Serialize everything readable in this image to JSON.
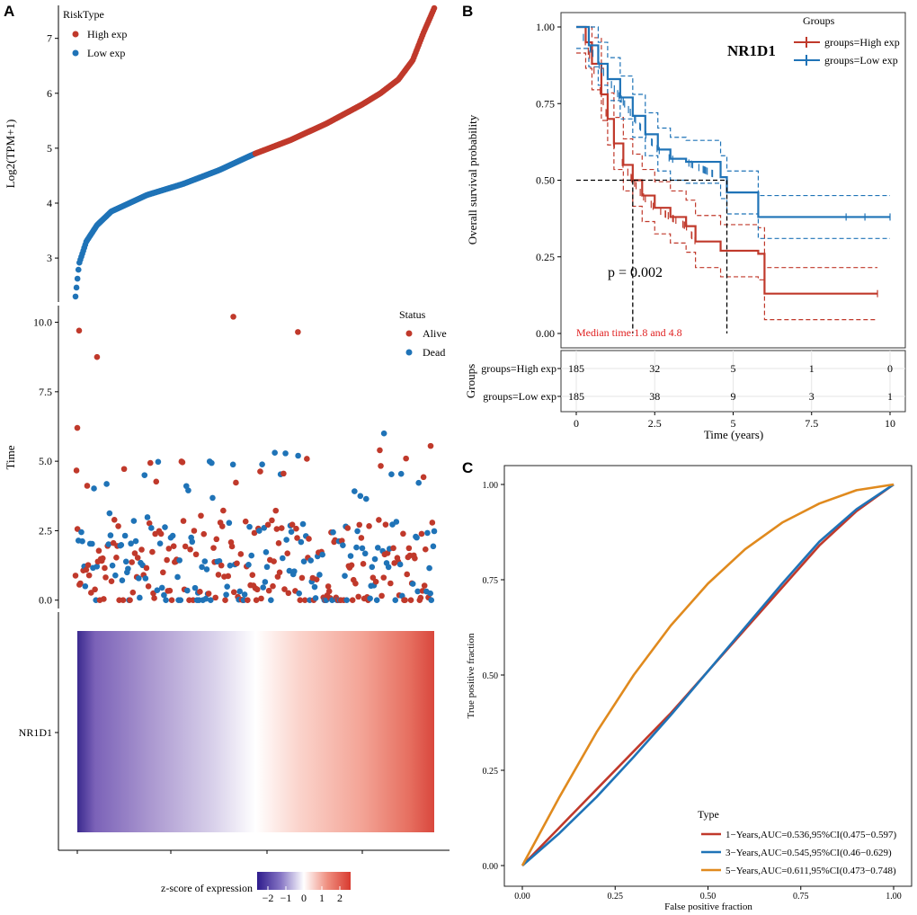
{
  "colors": {
    "high": "#c0392b",
    "low": "#1f73b7",
    "orange": "#e08a1e",
    "heat_low": "#3b2a8f",
    "heat_high": "#d9473d"
  },
  "panel_labels": {
    "a": "A",
    "b": "B",
    "c": "C"
  },
  "chart_data": [
    {
      "id": "risk_expression",
      "type": "scatter",
      "ylabel": "Log2(TPM+1)",
      "ylim": [
        2.2,
        7.6
      ],
      "y_ticks": [
        "3",
        "4",
        "5",
        "6",
        "7"
      ],
      "legend_title": "RiskType",
      "legend": [
        "High exp",
        "Low exp"
      ],
      "n_points": 370,
      "low_group_count": 185,
      "high_group_count": 185,
      "curve_profile": {
        "rank_fraction": [
          0,
          0.01,
          0.03,
          0.06,
          0.1,
          0.2,
          0.3,
          0.4,
          0.5,
          0.6,
          0.7,
          0.8,
          0.85,
          0.9,
          0.94,
          0.97,
          1.0
        ],
        "value": [
          2.3,
          2.9,
          3.3,
          3.6,
          3.85,
          4.15,
          4.35,
          4.6,
          4.9,
          5.15,
          5.45,
          5.8,
          6.0,
          6.25,
          6.6,
          7.1,
          7.55
        ]
      }
    },
    {
      "id": "survival_status",
      "type": "scatter",
      "ylabel": "Time",
      "ylim": [
        -0.3,
        10.6
      ],
      "y_ticks": [
        "0.0",
        "2.5",
        "5.0",
        "7.5",
        "10.0"
      ],
      "legend_title": "Status",
      "legend": [
        "Alive",
        "Dead"
      ],
      "n_points": 370,
      "notable_points": [
        {
          "rank_fraction": 0.005,
          "time": 6.2,
          "status": "Alive"
        },
        {
          "rank_fraction": 0.01,
          "time": 9.7,
          "status": "Alive"
        },
        {
          "rank_fraction": 0.06,
          "time": 8.75,
          "status": "Alive"
        },
        {
          "rank_fraction": 0.44,
          "time": 10.2,
          "status": "Alive"
        },
        {
          "rank_fraction": 0.62,
          "time": 9.65,
          "status": "Alive"
        },
        {
          "rank_fraction": 0.86,
          "time": 6.0,
          "status": "Dead"
        },
        {
          "rank_fraction": 0.99,
          "time": 5.55,
          "status": "Alive"
        }
      ]
    },
    {
      "id": "heatmap",
      "type": "heatmap",
      "row_label": "NR1D1",
      "colorbar_title": "z-score of expression",
      "colorbar_ticks": [
        "−2",
        "−1",
        "0",
        "1",
        "2"
      ],
      "zlim": [
        -2.6,
        2.6
      ]
    },
    {
      "id": "kaplan_meier",
      "type": "line",
      "title": "NR1D1",
      "xlabel": "Time (years)",
      "ylabel": "Overall survival probability",
      "xlim": [
        0,
        10
      ],
      "ylim": [
        0,
        1
      ],
      "x_ticks": [
        "0",
        "2.5",
        "5",
        "7.5",
        "10"
      ],
      "y_ticks": [
        "0.00",
        "0.25",
        "0.50",
        "0.75",
        "1.00"
      ],
      "legend_title": "Groups",
      "legend": [
        "groups=High exp",
        "groups=Low exp"
      ],
      "p_value_text": "p = 0.002",
      "median_text": "Median time:1.8 and 4.8",
      "median_times": [
        1.8,
        4.8
      ],
      "series": [
        {
          "name": "groups=High exp",
          "x": [
            0,
            0.3,
            0.5,
            0.8,
            1.0,
            1.2,
            1.5,
            1.8,
            2.1,
            2.5,
            3.0,
            3.5,
            3.8,
            4.6,
            5.8,
            6.0,
            9.6
          ],
          "y": [
            1.0,
            0.95,
            0.88,
            0.78,
            0.7,
            0.62,
            0.55,
            0.5,
            0.45,
            0.41,
            0.38,
            0.35,
            0.3,
            0.27,
            0.26,
            0.13,
            0.13
          ]
        },
        {
          "name": "groups=Low exp",
          "x": [
            0,
            0.4,
            0.7,
            1.0,
            1.4,
            1.8,
            2.2,
            2.6,
            3.0,
            3.5,
            4.6,
            4.8,
            5.8,
            10.0
          ],
          "y": [
            1.0,
            0.94,
            0.88,
            0.83,
            0.77,
            0.71,
            0.65,
            0.6,
            0.57,
            0.56,
            0.51,
            0.46,
            0.38,
            0.38
          ]
        }
      ],
      "risk_table": {
        "title": "Groups",
        "rows": [
          {
            "label": "groups=High exp",
            "values": [
              "185",
              "32",
              "5",
              "1",
              "0"
            ]
          },
          {
            "label": "groups=Low exp",
            "values": [
              "185",
              "38",
              "9",
              "3",
              "1"
            ]
          }
        ]
      }
    },
    {
      "id": "roc",
      "type": "line",
      "xlabel": "False positive fraction",
      "ylabel": "True positive fraction",
      "xlim": [
        0,
        1
      ],
      "ylim": [
        0,
        1
      ],
      "x_ticks": [
        "0.00",
        "0.25",
        "0.50",
        "0.75",
        "1.00"
      ],
      "y_ticks": [
        "0.00",
        "0.25",
        "0.50",
        "0.75",
        "1.00"
      ],
      "legend_title": "Type",
      "series": [
        {
          "name": "1−Years,AUC=0.536,95%CI(0.475−0.597)",
          "color_key": "high",
          "x": [
            0,
            0.1,
            0.2,
            0.3,
            0.4,
            0.5,
            0.6,
            0.7,
            0.8,
            0.9,
            1.0
          ],
          "y": [
            0,
            0.1,
            0.2,
            0.3,
            0.4,
            0.51,
            0.62,
            0.73,
            0.84,
            0.93,
            1.0
          ]
        },
        {
          "name": "3−Years,AUC=0.545,95%CI(0.46−0.629)",
          "color_key": "low",
          "x": [
            0,
            0.1,
            0.2,
            0.3,
            0.4,
            0.5,
            0.6,
            0.7,
            0.8,
            0.9,
            1.0
          ],
          "y": [
            0,
            0.085,
            0.18,
            0.285,
            0.395,
            0.51,
            0.625,
            0.74,
            0.85,
            0.935,
            1.0
          ]
        },
        {
          "name": "5−Years,AUC=0.611,95%CI(0.473−0.748)",
          "color_key": "orange",
          "x": [
            0,
            0.1,
            0.2,
            0.3,
            0.4,
            0.5,
            0.6,
            0.7,
            0.8,
            0.9,
            1.0
          ],
          "y": [
            0,
            0.18,
            0.35,
            0.5,
            0.63,
            0.74,
            0.83,
            0.9,
            0.95,
            0.985,
            1.0
          ]
        }
      ]
    }
  ]
}
